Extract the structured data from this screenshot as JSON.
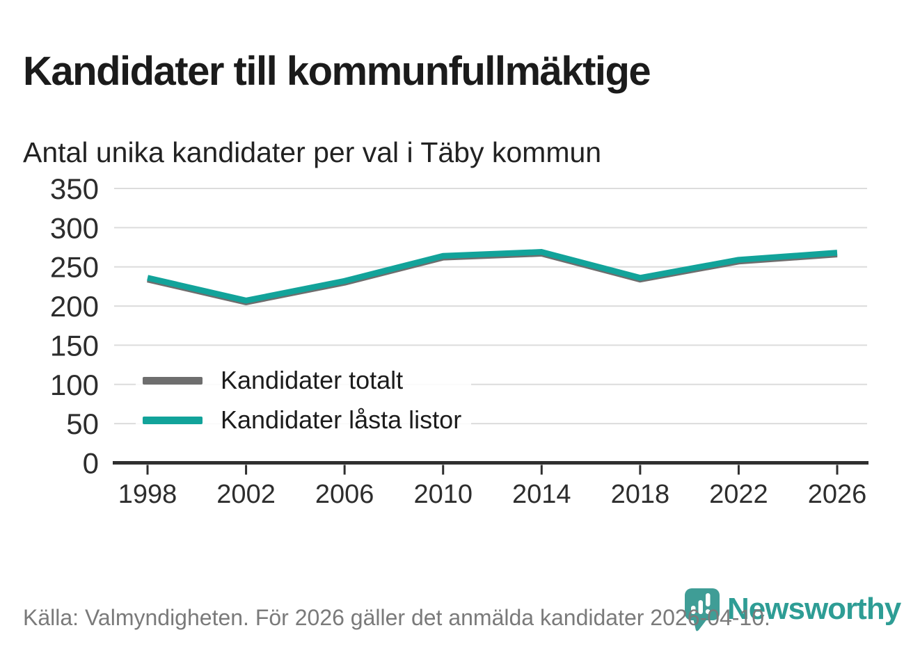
{
  "header": {
    "title": "Kandidater till kommunfullmäktige",
    "subtitle": "Antal unika kandidater per val i Täby kommun"
  },
  "chart_data": {
    "type": "line",
    "title": "Kandidater till kommunfullmäktige",
    "subtitle": "Antal unika kandidater per val i Täby kommun",
    "x": [
      1998,
      2002,
      2006,
      2010,
      2014,
      2018,
      2022,
      2026
    ],
    "series": [
      {
        "name": "Kandidater totalt",
        "color": "#6e6e6e",
        "values": [
          236,
          207,
          232,
          264,
          269,
          236,
          259,
          268
        ]
      },
      {
        "name": "Kandidater låsta listor",
        "color": "#12a39a",
        "values": [
          236,
          207,
          232,
          264,
          269,
          236,
          259,
          268
        ]
      }
    ],
    "ylim": [
      0,
      350
    ],
    "yticks": [
      0,
      50,
      100,
      150,
      200,
      250,
      300,
      350
    ],
    "grid": true,
    "legend_position": "inside-left",
    "xlabel": "",
    "ylabel": ""
  },
  "legend": {
    "items": [
      {
        "label": "Kandidater totalt",
        "color": "#6e6e6e"
      },
      {
        "label": "Kandidater låsta listor",
        "color": "#12a39a"
      }
    ]
  },
  "footer": {
    "source": "Källa: Valmyndigheten. För 2026 gäller det anmälda kandidater 2026-04-10."
  },
  "logo": {
    "brand": "Newsworthy",
    "text_color": "#2e9d95",
    "icon_color": "#3f9d96",
    "icon": "newsworthy-pin-barchart-icon"
  },
  "colors": {
    "gridline": "#dcdcdc",
    "axis": "#2f2f2f",
    "tick_label": "#2d2d2d",
    "background": "#ffffff"
  }
}
